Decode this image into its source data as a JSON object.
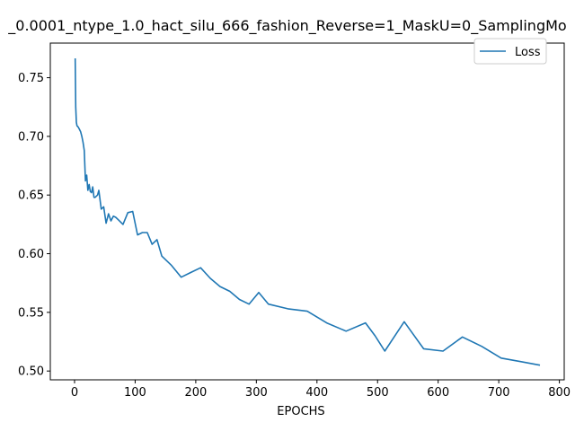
{
  "chart_data": {
    "type": "line",
    "title": "_0.0001_ntype_1.0_hact_silu_666_fashion_Reverse=1_MaskU=0_SamplingMo",
    "xlabel": "EPOCHS",
    "ylabel": "",
    "xlim": [
      -40,
      808
    ],
    "ylim": [
      0.4925,
      0.7795
    ],
    "xticks": [
      0,
      100,
      200,
      300,
      400,
      500,
      600,
      700,
      800
    ],
    "yticks": [
      0.5,
      0.55,
      0.6,
      0.65,
      0.7,
      0.75
    ],
    "ytick_labels": [
      "0.50",
      "0.55",
      "0.60",
      "0.65",
      "0.70",
      "0.75"
    ],
    "grid": false,
    "legend_position": "top-right",
    "series": [
      {
        "name": "Loss",
        "color": "#1f77b4",
        "x": [
          1,
          2,
          3,
          4,
          6,
          8,
          10,
          12,
          14,
          16,
          18,
          20,
          22,
          24,
          26,
          28,
          30,
          32,
          34,
          38,
          40,
          44,
          48,
          52,
          56,
          60,
          64,
          68,
          72,
          80,
          88,
          96,
          104,
          112,
          120,
          128,
          136,
          144,
          160,
          176,
          192,
          208,
          224,
          240,
          256,
          272,
          288,
          304,
          320,
          352,
          384,
          416,
          448,
          480,
          496,
          512,
          544,
          576,
          608,
          640,
          672,
          704,
          736,
          768
        ],
        "y": [
          0.7665,
          0.725,
          0.712,
          0.709,
          0.708,
          0.706,
          0.704,
          0.7,
          0.695,
          0.688,
          0.662,
          0.667,
          0.654,
          0.659,
          0.653,
          0.652,
          0.657,
          0.648,
          0.648,
          0.65,
          0.654,
          0.638,
          0.64,
          0.626,
          0.634,
          0.628,
          0.632,
          0.631,
          0.629,
          0.625,
          0.635,
          0.636,
          0.616,
          0.618,
          0.618,
          0.608,
          0.612,
          0.598,
          0.59,
          0.58,
          0.584,
          0.588,
          0.579,
          0.572,
          0.568,
          0.561,
          0.557,
          0.567,
          0.557,
          0.553,
          0.551,
          0.541,
          0.534,
          0.541,
          0.53,
          0.517,
          0.542,
          0.519,
          0.517,
          0.529,
          0.521,
          0.511,
          0.508,
          0.505
        ]
      }
    ]
  }
}
